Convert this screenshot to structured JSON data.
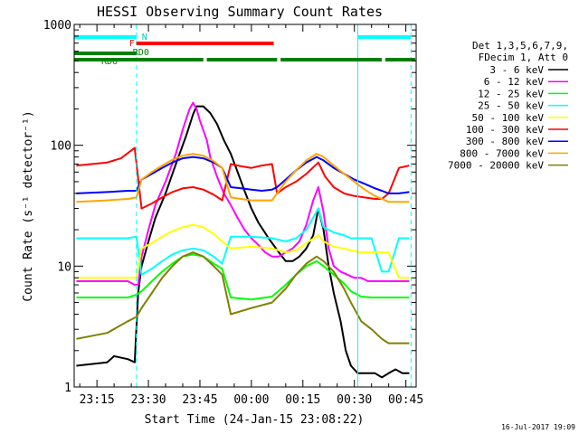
{
  "chart_data": {
    "type": "line",
    "title": "HESSI Observing Summary Count Rates",
    "xlabel": "Start Time (24-Jan-15 23:08:22)",
    "ylabel": "Count Rate (s⁻¹ detector⁻¹)",
    "x_unit": "minutes after 2015-01-24 23:00",
    "xlim": [
      8.37,
      108
    ],
    "ylim": [
      1,
      1000
    ],
    "yscale": "log",
    "x_ticks": [
      {
        "x": 15,
        "label": "23:15"
      },
      {
        "x": 30,
        "label": "23:30"
      },
      {
        "x": 45,
        "label": "23:45"
      },
      {
        "x": 60,
        "label": "00:00"
      },
      {
        "x": 75,
        "label": "00:15"
      },
      {
        "x": 90,
        "label": "00:30"
      },
      {
        "x": 105,
        "label": "00:45"
      }
    ],
    "y_ticks": [
      {
        "y": 1,
        "label": "1"
      },
      {
        "y": 10,
        "label": "10"
      },
      {
        "y": 100,
        "label": "100"
      },
      {
        "y": 1000,
        "label": "1000"
      }
    ],
    "legend": {
      "placement": "right",
      "header": [
        "Det 1,3,5,6,7,9,",
        "FDecim 1, Att 0"
      ]
    },
    "series": [
      {
        "name": "3 - 6 keV",
        "color": "#000000",
        "x": [
          9,
          18,
          20,
          24,
          26,
          27,
          28,
          30,
          32,
          35,
          38,
          41,
          43,
          44,
          46,
          48,
          50,
          52,
          54,
          56,
          58,
          60,
          62,
          65,
          68,
          70,
          72,
          74,
          76,
          78,
          79.5,
          81,
          82.5,
          84,
          86,
          87.5,
          89,
          91,
          96,
          98,
          100,
          102,
          104,
          106
        ],
        "y": [
          1.5,
          1.6,
          1.8,
          1.7,
          1.6,
          6,
          10,
          16,
          25,
          40,
          70,
          120,
          180,
          210,
          210,
          185,
          150,
          110,
          85,
          60,
          42,
          30,
          23,
          17,
          13,
          11,
          11,
          12,
          14,
          18,
          30,
          20,
          10,
          6,
          3.5,
          2,
          1.5,
          1.3,
          1.3,
          1.2,
          1.3,
          1.4,
          1.3,
          1.3
        ]
      },
      {
        "name": "6 - 12 keV",
        "color": "#ff00ff",
        "x": [
          9,
          18,
          24,
          26,
          27,
          28,
          30,
          32,
          35,
          38,
          40,
          42,
          43,
          44,
          45,
          47,
          48,
          50,
          52,
          54,
          56,
          58,
          60,
          62,
          64,
          66,
          68,
          70,
          72,
          74,
          76,
          78,
          79.5,
          81,
          82.5,
          84,
          86,
          88,
          90,
          92,
          94,
          96,
          98,
          100,
          102,
          104,
          106
        ],
        "y": [
          7.5,
          7.5,
          7.5,
          7,
          7,
          12,
          20,
          32,
          50,
          85,
          135,
          200,
          225,
          200,
          160,
          110,
          80,
          55,
          40,
          32,
          25,
          20,
          17,
          15,
          13,
          12,
          12,
          13,
          14,
          16,
          22,
          35,
          45,
          28,
          14,
          10,
          9,
          8.5,
          8,
          8,
          7.5,
          7.5,
          7.5,
          7.5,
          7.5,
          7.5,
          7.5
        ]
      },
      {
        "name": "12 - 25 keV",
        "color": "#00ff00",
        "x": [
          9,
          18,
          24,
          26.5,
          28,
          31,
          34,
          37,
          40,
          43,
          46,
          49,
          51.5,
          54,
          60,
          66,
          70,
          73,
          76,
          79,
          81,
          84,
          87,
          89,
          92,
          95,
          98,
          100,
          103,
          106
        ],
        "y": [
          5.5,
          5.5,
          5.5,
          5.8,
          6.2,
          7.5,
          9,
          10.5,
          12,
          12.5,
          12,
          10.5,
          9.5,
          5.5,
          5.3,
          5.6,
          7,
          8.5,
          10,
          11,
          10,
          8.5,
          7.2,
          6.2,
          5.6,
          5.5,
          5.5,
          5.5,
          5.5,
          5.5
        ]
      },
      {
        "name": "25 - 50 keV",
        "color": "#00ffff",
        "x": [
          9,
          18,
          24,
          26.5,
          28,
          31,
          34,
          37,
          40,
          43,
          46,
          49,
          51.5,
          54,
          60,
          66,
          70,
          73,
          76,
          79.5,
          81,
          84,
          87,
          89,
          92,
          95,
          98,
          100,
          103,
          106
        ],
        "y": [
          17,
          17,
          17,
          17.5,
          8.5,
          9.5,
          11,
          12.5,
          13.5,
          14,
          13.5,
          12,
          10.5,
          17.5,
          17.5,
          17,
          16,
          17,
          20,
          30,
          21,
          19,
          18,
          17,
          17,
          17,
          9,
          9,
          17,
          17
        ]
      },
      {
        "name": "50 - 100 keV",
        "color": "#ffff00",
        "x": [
          9,
          18,
          24,
          26.5,
          28,
          31,
          34,
          37,
          40,
          43,
          46,
          49,
          51.5,
          54,
          60,
          66,
          70,
          73,
          76,
          79.5,
          81,
          84,
          87,
          89,
          92,
          95,
          98,
          100,
          103,
          106
        ],
        "y": [
          8,
          8,
          8,
          8,
          14,
          15.5,
          17.5,
          19.5,
          21,
          22,
          21,
          18.5,
          16,
          14,
          14.5,
          14,
          13,
          13.5,
          15.5,
          18,
          16,
          14.5,
          14,
          13.5,
          13,
          13,
          13,
          13,
          8,
          8
        ]
      },
      {
        "name": "100 - 300 keV",
        "color": "#ff0000",
        "x": [
          9,
          18,
          22,
          26,
          28,
          31,
          34,
          37,
          40,
          43,
          46,
          49,
          51.5,
          54,
          57,
          60,
          63,
          66,
          67.5,
          70,
          73,
          76,
          79.5,
          81.5,
          84,
          87,
          90,
          93,
          96,
          98,
          100,
          103,
          106
        ],
        "y": [
          68,
          72,
          78,
          95,
          30,
          33,
          37,
          41,
          44,
          45,
          43,
          39,
          35,
          70,
          67,
          65,
          68,
          70,
          40,
          45,
          50,
          58,
          72,
          55,
          45,
          40,
          38,
          37,
          36,
          36,
          40,
          65,
          68
        ]
      },
      {
        "name": "300 - 800 keV",
        "color": "#0000ff",
        "x": [
          9,
          18,
          24,
          26.5,
          28,
          31,
          34,
          37,
          40,
          43,
          46,
          49,
          51.5,
          54,
          57,
          60,
          63,
          66,
          67.5,
          70,
          73,
          76,
          79,
          81,
          84,
          87,
          90,
          93,
          96,
          98,
          100,
          103,
          106
        ],
        "y": [
          40,
          41,
          42,
          42,
          52,
          58,
          65,
          72,
          78,
          80,
          78,
          72,
          65,
          45,
          44,
          43,
          42,
          43,
          45,
          52,
          62,
          72,
          80,
          75,
          65,
          58,
          52,
          48,
          44,
          42,
          40,
          40,
          41
        ]
      },
      {
        "name": "800 - 7000 keV",
        "color": "#ffa500",
        "x": [
          9,
          18,
          24,
          26.5,
          28,
          31,
          34,
          37,
          40,
          43,
          46,
          49,
          51.5,
          54,
          57,
          60,
          63,
          66,
          67.5,
          70,
          73,
          76,
          79,
          81,
          84,
          87,
          90,
          93,
          96,
          98,
          100,
          103,
          106
        ],
        "y": [
          34,
          35,
          36,
          37,
          52,
          60,
          68,
          76,
          82,
          85,
          82,
          74,
          65,
          37,
          36,
          35,
          35,
          35,
          40,
          50,
          62,
          75,
          85,
          80,
          68,
          58,
          50,
          43,
          38,
          36,
          34,
          34,
          34
        ]
      },
      {
        "name": "7000 - 20000 keV",
        "color": "#808000",
        "x": [
          9,
          18,
          24,
          26.5,
          28,
          31,
          34,
          37,
          40,
          43,
          46,
          49,
          51.5,
          54,
          60,
          66,
          70,
          73,
          76,
          79,
          81,
          84,
          87,
          89,
          92,
          95,
          98,
          100,
          103,
          106
        ],
        "y": [
          2.5,
          2.8,
          3.5,
          3.8,
          4.5,
          6,
          8,
          10,
          12,
          13,
          12,
          10,
          8.5,
          4,
          4.5,
          5,
          6.5,
          8.5,
          10.5,
          12,
          11,
          9,
          6.5,
          5,
          3.5,
          3,
          2.5,
          2.3,
          2.3,
          2.3
        ]
      }
    ],
    "flags": [
      {
        "label": "N",
        "color": "#00ffff",
        "segments": [
          [
            8.5,
            26.5
          ],
          [
            91,
            106.5
          ]
        ]
      },
      {
        "label": "F",
        "color": "#ff0000",
        "segments": [
          [
            26.5,
            66.5
          ]
        ]
      },
      {
        "label": "RD0",
        "color": "#008000",
        "segments": [
          [
            8.5,
            26.5
          ]
        ]
      },
      {
        "label": "RD6",
        "color": "#008000",
        "segments": [
          [
            8.5,
            46
          ],
          [
            47,
            67.5
          ],
          [
            68.5,
            98
          ],
          [
            99,
            108
          ]
        ]
      }
    ],
    "saa_lines": [
      {
        "x": 26.5,
        "style": "dashed",
        "color": "#00ffff"
      },
      {
        "x": 91,
        "style": "solid",
        "color": "#00ffff"
      },
      {
        "x": 106.5,
        "style": "dashed",
        "color": "#00ffff"
      }
    ]
  },
  "footer": {
    "date": "16-Jul-2017 19:09"
  }
}
